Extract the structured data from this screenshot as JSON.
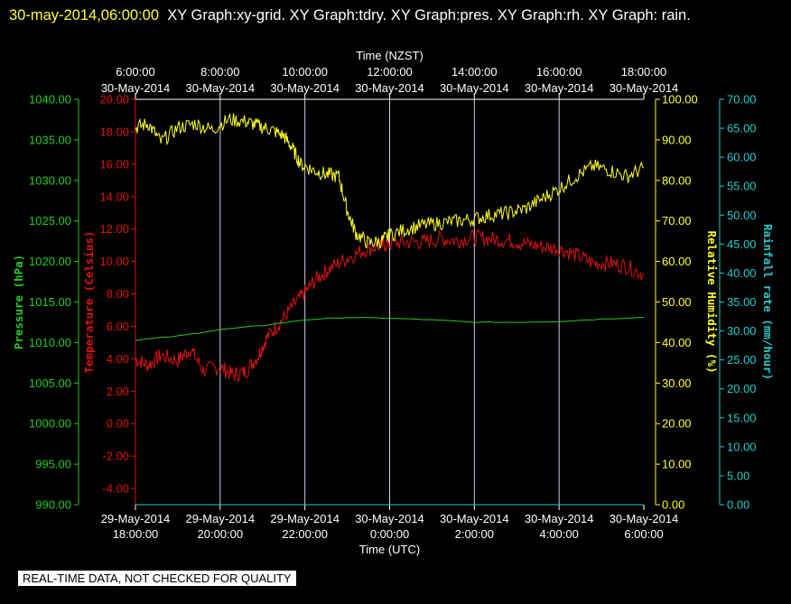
{
  "title": {
    "date": "30-may-2014,06:00:00",
    "text": "XY Graph:xy-grid.  XY Graph:tdry.  XY Graph:pres.  XY Graph:rh.  XY Graph: rain."
  },
  "footer_note": "REAL-TIME DATA, NOT CHECKED FOR QUALITY",
  "colors": {
    "pressure": "#22cc22",
    "temperature": "#dd1111",
    "humidity": "#ffff22",
    "rainfall": "#22cccc",
    "grid": "#c8d0e8"
  },
  "chart_data": {
    "type": "line",
    "x_axis_top": {
      "label": "Time (NZST)",
      "ticks": [
        {
          "time": "6:00:00",
          "date": "30-May-2014"
        },
        {
          "time": "8:00:00",
          "date": "30-May-2014"
        },
        {
          "time": "10:00:00",
          "date": "30-May-2014"
        },
        {
          "time": "12:00:00",
          "date": "30-May-2014"
        },
        {
          "time": "14:00:00",
          "date": "30-May-2014"
        },
        {
          "time": "16:00:00",
          "date": "30-May-2014"
        },
        {
          "time": "18:00:00",
          "date": "30-May-2014"
        }
      ]
    },
    "x_axis_bottom": {
      "label": "Time (UTC)",
      "ticks": [
        {
          "date": "29-May-2014",
          "time": "18:00:00"
        },
        {
          "date": "29-May-2014",
          "time": "20:00:00"
        },
        {
          "date": "29-May-2014",
          "time": "22:00:00"
        },
        {
          "date": "30-May-2014",
          "time": "0:00:00"
        },
        {
          "date": "30-May-2014",
          "time": "2:00:00"
        },
        {
          "date": "30-May-2014",
          "time": "4:00:00"
        },
        {
          "date": "30-May-2014",
          "time": "6:00:00"
        }
      ]
    },
    "xlim_utc_hours": [
      18,
      30
    ],
    "axes": {
      "pressure": {
        "label": "Pressure (hPa)",
        "range": [
          990,
          1040
        ],
        "ticks": [
          "990.00",
          "995.00",
          "1000.00",
          "1005.00",
          "1010.00",
          "1015.00",
          "1020.00",
          "1025.00",
          "1030.00",
          "1035.00",
          "1040.00"
        ]
      },
      "temperature": {
        "label": "Temperature (Celsius)",
        "range": [
          -5,
          20
        ],
        "ticks": [
          "-4.00",
          "-2.00",
          "0.00",
          "2.00",
          "4.00",
          "6.00",
          "8.00",
          "10.00",
          "12.00",
          "14.00",
          "16.00",
          "18.00",
          "20.00"
        ]
      },
      "humidity": {
        "label": "Relative Humidity (%)",
        "range": [
          0,
          100
        ],
        "ticks": [
          "0.00",
          "10.00",
          "20.00",
          "30.00",
          "40.00",
          "50.00",
          "60.00",
          "70.00",
          "80.00",
          "90.00",
          "100.00"
        ]
      },
      "rainfall": {
        "label": "Rainfall rate (mm/hour)",
        "range": [
          0,
          70
        ],
        "ticks": [
          "0.00",
          "5.00",
          "10.00",
          "15.00",
          "20.00",
          "25.00",
          "30.00",
          "35.00",
          "40.00",
          "45.00",
          "50.00",
          "55.00",
          "60.00",
          "65.00",
          "70.00"
        ]
      }
    },
    "series": [
      {
        "name": "tdry",
        "axis": "temperature",
        "x": [
          18.0,
          18.3,
          18.6,
          19.0,
          19.3,
          19.6,
          20.0,
          20.3,
          20.6,
          20.9,
          21.1,
          21.4,
          21.7,
          22.0,
          22.3,
          22.6,
          23.0,
          23.4,
          23.8,
          24.0,
          24.4,
          24.8,
          25.2,
          25.6,
          26.0,
          26.4,
          26.8,
          27.2,
          27.6,
          28.0,
          28.4,
          28.8,
          29.2,
          29.6,
          30.0
        ],
        "y": [
          4.0,
          3.6,
          4.2,
          3.9,
          4.6,
          3.3,
          3.5,
          3.0,
          3.2,
          4.2,
          5.3,
          6.2,
          7.2,
          8.1,
          9.0,
          9.6,
          10.2,
          10.7,
          11.0,
          11.1,
          11.2,
          11.2,
          11.4,
          11.3,
          11.5,
          11.4,
          11.3,
          11.1,
          10.9,
          10.8,
          10.4,
          9.9,
          9.9,
          9.7,
          9.2
        ]
      },
      {
        "name": "pres",
        "axis": "pressure",
        "x": [
          18.0,
          19.0,
          20.0,
          21.0,
          22.0,
          23.0,
          24.0,
          25.0,
          26.0,
          27.0,
          28.0,
          29.0,
          30.0
        ],
        "y": [
          1010.3,
          1010.8,
          1011.6,
          1012.1,
          1012.8,
          1013.1,
          1013.0,
          1012.8,
          1012.5,
          1012.5,
          1012.6,
          1012.9,
          1013.1
        ]
      },
      {
        "name": "rh",
        "axis": "humidity",
        "x": [
          18.0,
          18.3,
          18.6,
          19.0,
          19.4,
          19.8,
          20.2,
          20.6,
          20.9,
          21.2,
          21.5,
          21.7,
          21.9,
          22.2,
          22.5,
          22.8,
          23.0,
          23.2,
          23.5,
          23.8,
          24.0,
          24.4,
          24.8,
          25.2,
          25.6,
          26.0,
          26.4,
          26.8,
          27.2,
          27.6,
          28.0,
          28.4,
          28.8,
          29.2,
          29.6,
          30.0
        ],
        "y": [
          93.0,
          94.0,
          89.5,
          93.0,
          94.0,
          92.5,
          95.0,
          94.5,
          93.5,
          92.5,
          91.0,
          88.0,
          84.0,
          82.5,
          81.5,
          81.0,
          72.5,
          67.0,
          64.5,
          65.0,
          66.5,
          68.0,
          69.0,
          69.5,
          70.0,
          70.5,
          71.5,
          72.0,
          73.0,
          75.5,
          78.0,
          81.0,
          83.5,
          82.5,
          81.0,
          83.0
        ]
      },
      {
        "name": "rain",
        "axis": "rainfall",
        "x": [
          18.0,
          30.0
        ],
        "y": [
          0.0,
          0.0
        ]
      }
    ],
    "grid": true
  }
}
